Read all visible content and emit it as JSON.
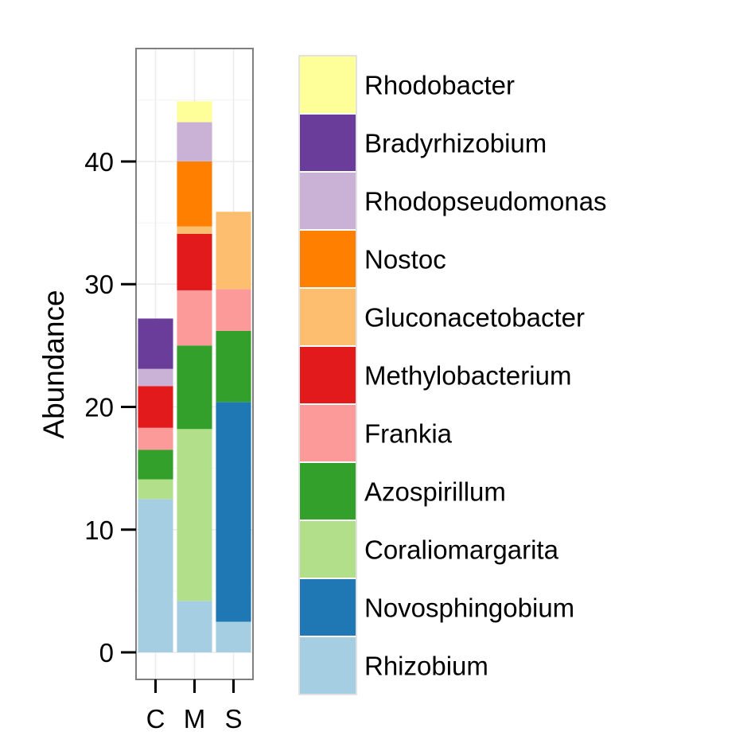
{
  "chart_data": {
    "type": "bar",
    "stacked": true,
    "categories": [
      "C",
      "M",
      "S"
    ],
    "ylabel": "Abundance",
    "xlabel": "",
    "ylim": [
      -2.2,
      49.2
    ],
    "yticks": [
      0,
      10,
      20,
      30,
      40
    ],
    "grid": true,
    "legend_position": "right",
    "series": [
      {
        "name": "Rhizobium",
        "color": "#A6CEE3",
        "values": [
          12.5,
          4.2,
          2.5
        ]
      },
      {
        "name": "Novosphingobium",
        "color": "#1F78B4",
        "values": [
          0,
          0,
          17.9
        ]
      },
      {
        "name": "Coraliomargarita",
        "color": "#B2DF8A",
        "values": [
          1.6,
          14.0,
          0
        ]
      },
      {
        "name": "Azospirillum",
        "color": "#33A02C",
        "values": [
          2.4,
          6.8,
          5.8
        ]
      },
      {
        "name": "Frankia",
        "color": "#FB9A99",
        "values": [
          1.8,
          4.5,
          3.4
        ]
      },
      {
        "name": "Methylobacterium",
        "color": "#E31A1C",
        "values": [
          3.4,
          4.6,
          0
        ]
      },
      {
        "name": "Gluconacetobacter",
        "color": "#FDBF6F",
        "values": [
          0,
          0.6,
          6.3
        ]
      },
      {
        "name": "Nostoc",
        "color": "#FF7F00",
        "values": [
          0,
          5.3,
          0
        ]
      },
      {
        "name": "Rhodopseudomonas",
        "color": "#CAB2D6",
        "values": [
          1.4,
          3.2,
          0
        ]
      },
      {
        "name": "Bradyrhizobium",
        "color": "#6A3D9A",
        "values": [
          4.1,
          0,
          0
        ]
      },
      {
        "name": "Rhodobacter",
        "color": "#FFFF99",
        "values": [
          0,
          1.7,
          0
        ]
      }
    ],
    "legend_order": [
      "Rhodobacter",
      "Bradyrhizobium",
      "Rhodopseudomonas",
      "Nostoc",
      "Gluconacetobacter",
      "Methylobacterium",
      "Frankia",
      "Azospirillum",
      "Coraliomargarita",
      "Novosphingobium",
      "Rhizobium"
    ]
  }
}
